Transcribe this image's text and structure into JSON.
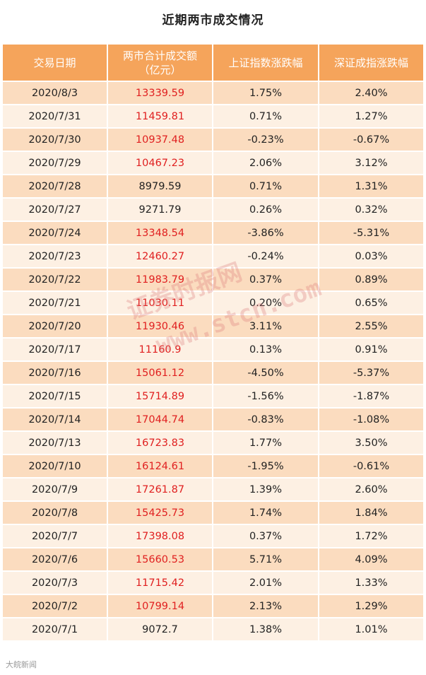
{
  "title": "近期两市成交情况",
  "headers": [
    "交易日期",
    "两市合计成交额\n（亿元）",
    "上证指数涨跌幅",
    "深证成指涨跌幅"
  ],
  "rows": [
    {
      "date": "2020/8/3",
      "volume": "13339.59",
      "sh": "1.75%",
      "sz": "2.40%",
      "red": true
    },
    {
      "date": "2020/7/31",
      "volume": "11459.81",
      "sh": "0.71%",
      "sz": "1.27%",
      "red": true
    },
    {
      "date": "2020/7/30",
      "volume": "10937.48",
      "sh": "-0.23%",
      "sz": "-0.67%",
      "red": true
    },
    {
      "date": "2020/7/29",
      "volume": "10467.23",
      "sh": "2.06%",
      "sz": "3.12%",
      "red": true
    },
    {
      "date": "2020/7/28",
      "volume": "8979.59",
      "sh": "0.71%",
      "sz": "1.31%",
      "red": false
    },
    {
      "date": "2020/7/27",
      "volume": "9271.79",
      "sh": "0.26%",
      "sz": "0.32%",
      "red": false
    },
    {
      "date": "2020/7/24",
      "volume": "13348.54",
      "sh": "-3.86%",
      "sz": "-5.31%",
      "red": true
    },
    {
      "date": "2020/7/23",
      "volume": "12460.27",
      "sh": "-0.24%",
      "sz": "0.03%",
      "red": true
    },
    {
      "date": "2020/7/22",
      "volume": "11983.79",
      "sh": "0.37%",
      "sz": "0.89%",
      "red": true
    },
    {
      "date": "2020/7/21",
      "volume": "11030.11",
      "sh": "0.20%",
      "sz": "0.65%",
      "red": true
    },
    {
      "date": "2020/7/20",
      "volume": "11930.46",
      "sh": "3.11%",
      "sz": "2.55%",
      "red": true
    },
    {
      "date": "2020/7/17",
      "volume": "11160.9",
      "sh": "0.13%",
      "sz": "0.91%",
      "red": true
    },
    {
      "date": "2020/7/16",
      "volume": "15061.12",
      "sh": "-4.50%",
      "sz": "-5.37%",
      "red": true
    },
    {
      "date": "2020/7/15",
      "volume": "15714.89",
      "sh": "-1.56%",
      "sz": "-1.87%",
      "red": true
    },
    {
      "date": "2020/7/14",
      "volume": "17044.74",
      "sh": "-0.83%",
      "sz": "-1.08%",
      "red": true
    },
    {
      "date": "2020/7/13",
      "volume": "16723.83",
      "sh": "1.77%",
      "sz": "3.50%",
      "red": true
    },
    {
      "date": "2020/7/10",
      "volume": "16124.61",
      "sh": "-1.95%",
      "sz": "-0.61%",
      "red": true
    },
    {
      "date": "2020/7/9",
      "volume": "17261.87",
      "sh": "1.39%",
      "sz": "2.60%",
      "red": true
    },
    {
      "date": "2020/7/8",
      "volume": "15425.73",
      "sh": "1.74%",
      "sz": "1.84%",
      "red": true
    },
    {
      "date": "2020/7/7",
      "volume": "17398.08",
      "sh": "0.37%",
      "sz": "1.72%",
      "red": true
    },
    {
      "date": "2020/7/6",
      "volume": "15660.53",
      "sh": "5.71%",
      "sz": "4.09%",
      "red": true
    },
    {
      "date": "2020/7/3",
      "volume": "11715.42",
      "sh": "2.01%",
      "sz": "1.33%",
      "red": true
    },
    {
      "date": "2020/7/2",
      "volume": "10799.14",
      "sh": "2.13%",
      "sz": "1.29%",
      "red": true
    },
    {
      "date": "2020/7/1",
      "volume": "9072.7",
      "sh": "1.38%",
      "sz": "1.01%",
      "red": false
    }
  ],
  "watermark": {
    "line1": "证券时报网",
    "line2": "www.stcn.com"
  },
  "logo_text": "大皖新闻",
  "colors": {
    "header_bg": "#f5a45b",
    "row_dark": "#fbdcbf",
    "row_light": "#fdf0e3",
    "highlight_text": "#e02020"
  }
}
